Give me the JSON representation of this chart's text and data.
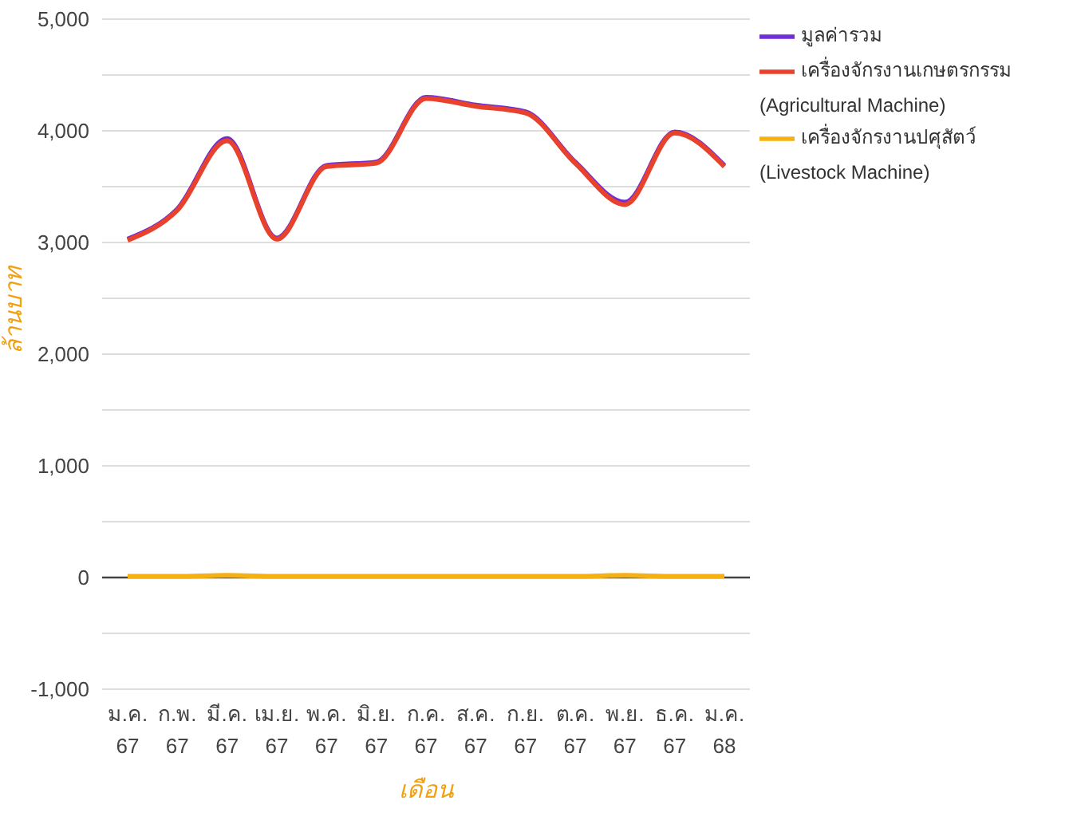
{
  "chart_data": {
    "type": "line",
    "xlabel": "เดือน",
    "ylabel": "ล้านบาท",
    "categories": [
      "ม.ค. 67",
      "ก.พ. 67",
      "มี.ค. 67",
      "เม.ย. 67",
      "พ.ค. 67",
      "มิ.ย. 67",
      "ก.ค. 67",
      "ส.ค. 67",
      "ก.ย. 67",
      "ต.ค. 67",
      "พ.ย. 67",
      "ธ.ค. 67",
      "ม.ค. 68"
    ],
    "series": [
      {
        "name": "มูลค่ารวม",
        "color": "#6f2ed6",
        "values": [
          3030,
          3300,
          3930,
          3040,
          3690,
          3720,
          4300,
          4230,
          4170,
          3720,
          3360,
          3990,
          3690
        ]
      },
      {
        "name": "เครื่องจักรงานเกษตรกรรม (Agricultural Machine)",
        "color": "#e8412c",
        "values": [
          3020,
          3290,
          3910,
          3030,
          3680,
          3710,
          4290,
          4220,
          4160,
          3710,
          3340,
          3980,
          3680
        ]
      },
      {
        "name": "เครื่องจักรงานปศุสัตว์ (Livestock Machine)",
        "color": "#f5b014",
        "values": [
          10,
          10,
          20,
          10,
          10,
          10,
          10,
          10,
          10,
          10,
          20,
          10,
          10
        ]
      }
    ],
    "ylim": [
      -1000,
      5000
    ],
    "yticks": [
      {
        "value": -1000,
        "label": "-1,000"
      },
      {
        "value": -500,
        "label": null
      },
      0,
      {
        "value": 500,
        "label": null
      },
      {
        "value": 1000,
        "label": "1,000"
      },
      {
        "value": 1500,
        "label": null
      },
      {
        "value": 2000,
        "label": "2,000"
      },
      {
        "value": 2500,
        "label": null
      },
      {
        "value": 3000,
        "label": "3,000"
      },
      {
        "value": 3500,
        "label": null
      },
      {
        "value": 4000,
        "label": "4,000"
      },
      {
        "value": 4500,
        "label": null
      },
      {
        "value": 5000,
        "label": "5,000"
      }
    ],
    "ref_lines": [
      {
        "axis": "y",
        "value": 0,
        "color": "#444444"
      }
    ],
    "grid": "y",
    "legend": "right",
    "marker": "none",
    "line_style": "solid"
  }
}
